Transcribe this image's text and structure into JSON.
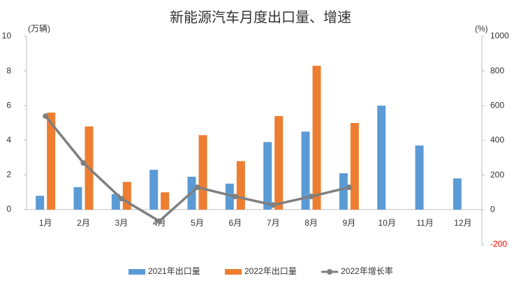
{
  "chart_data": {
    "type": "bar-line",
    "title": "新能源汽车月度出口量、增速",
    "y_label": "(万辆)",
    "y2_label": "(%)",
    "categories": [
      "1月",
      "2月",
      "3月",
      "4月",
      "5月",
      "6月",
      "7月",
      "8月",
      "9月",
      "10月",
      "11月",
      "12月"
    ],
    "series": [
      {
        "name": "2021年出口量",
        "type": "bar",
        "color": "#5b9bd5",
        "values": [
          0.8,
          1.3,
          0.9,
          2.3,
          1.9,
          1.5,
          3.9,
          4.5,
          2.1,
          6.0,
          3.7,
          1.8
        ]
      },
      {
        "name": "2022年出口量",
        "type": "bar",
        "color": "#ed7d31",
        "values": [
          5.6,
          4.8,
          1.6,
          1.0,
          4.3,
          2.8,
          5.4,
          8.3,
          5.0,
          null,
          null,
          null
        ]
      },
      {
        "name": "2022年增长率",
        "type": "line",
        "axis": "y2",
        "color": "#7f7f7f",
        "values": [
          540,
          270,
          65,
          -65,
          130,
          77,
          28,
          77,
          130,
          null,
          null,
          null
        ]
      }
    ],
    "ylim": [
      0,
      10
    ],
    "yticks": [
      0,
      2,
      4,
      6,
      8,
      10
    ],
    "y2lim": [
      -200,
      1000
    ],
    "y2ticks": [
      -200,
      0,
      200,
      400,
      600,
      800,
      1000
    ],
    "y2_negative_color": "#ff0000",
    "grid": false,
    "legend": "bottom"
  }
}
